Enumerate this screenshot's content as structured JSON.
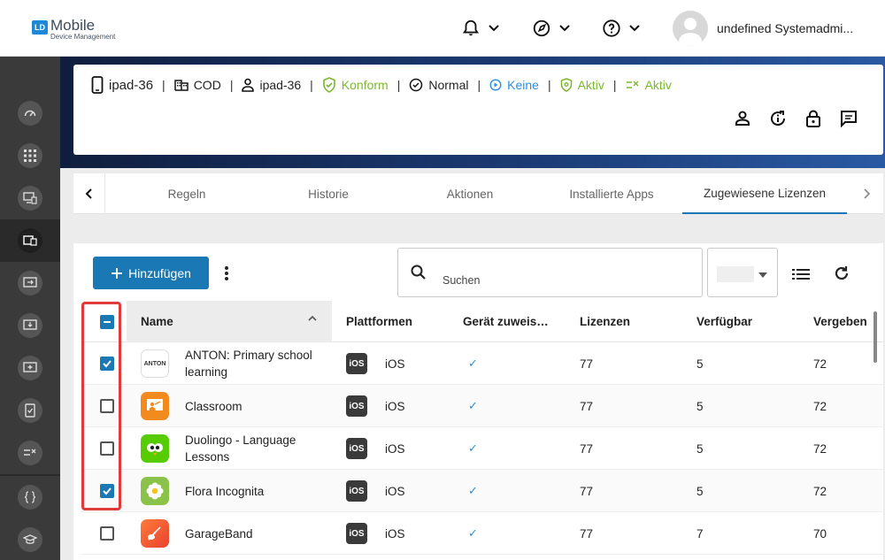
{
  "header": {
    "logo_mark": "LD",
    "logo_name": "Mobile",
    "logo_sub": "Device Management",
    "user_name": "undefined Systemadmi..."
  },
  "device": {
    "name": "ipad-36",
    "ownership": "COD",
    "user": "ipad-36",
    "compliance": "Konform",
    "state": "Normal",
    "activation": "Keine",
    "shield_status": "Aktiv",
    "policy_status": "Aktiv"
  },
  "tabs": [
    {
      "label": "Regeln"
    },
    {
      "label": "Historie"
    },
    {
      "label": "Aktionen"
    },
    {
      "label": "Installierte Apps"
    },
    {
      "label": "Zugewiesene Lizenzen"
    }
  ],
  "toolbar": {
    "add_label": "Hinzufügen",
    "search_placeholder": "Suchen"
  },
  "table": {
    "headers": {
      "name": "Name",
      "platforms": "Plattformen",
      "assign": "Gerät zuweis…",
      "licenses": "Lizenzen",
      "available": "Verfügbar",
      "assigned": "Vergeben"
    },
    "rows": [
      {
        "checked": true,
        "name": "ANTON: Primary school learning",
        "icon": "anton-icon",
        "platform": "iOS",
        "platform_badge": "iOS",
        "assign": "✓",
        "licenses": "77",
        "available": "5",
        "assigned": "72"
      },
      {
        "checked": false,
        "name": "Classroom",
        "icon": "classroom-icon",
        "platform": "iOS",
        "platform_badge": "iOS",
        "assign": "✓",
        "licenses": "77",
        "available": "5",
        "assigned": "72"
      },
      {
        "checked": false,
        "name": "Duolingo - Language Lessons",
        "icon": "duolingo-icon",
        "platform": "iOS",
        "platform_badge": "iOS",
        "assign": "✓",
        "licenses": "77",
        "available": "5",
        "assigned": "72"
      },
      {
        "checked": true,
        "name": "Flora Incognita",
        "icon": "flora-incognita-icon",
        "platform": "iOS",
        "platform_badge": "iOS",
        "assign": "✓",
        "licenses": "77",
        "available": "5",
        "assigned": "72"
      },
      {
        "checked": false,
        "name": "GarageBand",
        "icon": "garageband-icon",
        "platform": "iOS",
        "platform_badge": "iOS",
        "assign": "✓",
        "licenses": "77",
        "available": "7",
        "assigned": "70"
      }
    ]
  },
  "colors": {
    "primary": "#1a78b4",
    "compliance_green": "#7cb82f",
    "link_blue": "#2a8ee0",
    "highlight_red": "#e03a3a"
  }
}
